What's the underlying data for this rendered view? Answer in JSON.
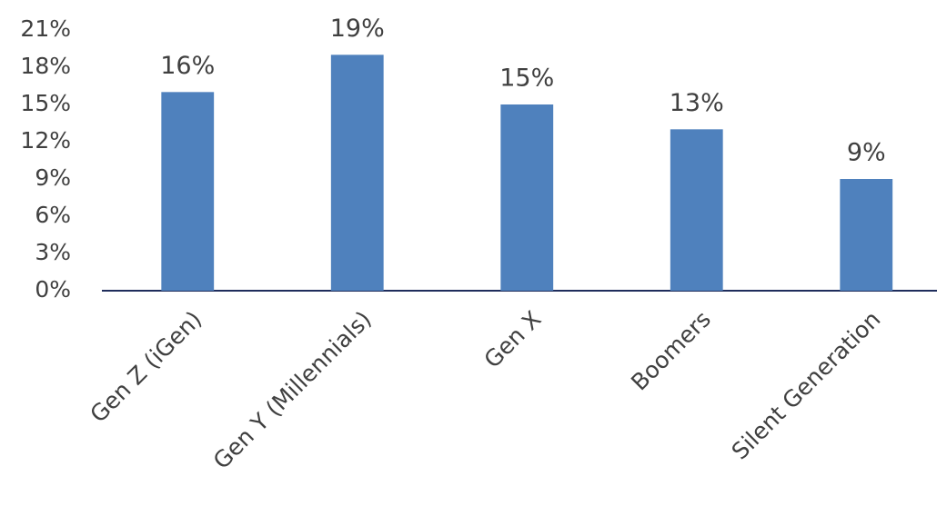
{
  "chart_data": {
    "type": "bar",
    "categories": [
      "Gen Z (iGen)",
      "Gen Y (Millennials)",
      "Gen X",
      "Boomers",
      "Silent Generation"
    ],
    "values": [
      16,
      19,
      15,
      13,
      9
    ],
    "value_labels": [
      "16%",
      "19%",
      "15%",
      "13%",
      "9%"
    ],
    "color": "#4f81bd",
    "ylim": [
      0,
      21
    ],
    "yticks": [
      {
        "value": 0,
        "label": "0%"
      },
      {
        "value": 3,
        "label": "3%"
      },
      {
        "value": 6,
        "label": "6%"
      },
      {
        "value": 9,
        "label": "9%"
      },
      {
        "value": 12,
        "label": "12%"
      },
      {
        "value": 15,
        "label": "15%"
      },
      {
        "value": 18,
        "label": "18%"
      },
      {
        "value": 21,
        "label": "21%"
      }
    ],
    "grid": false
  }
}
